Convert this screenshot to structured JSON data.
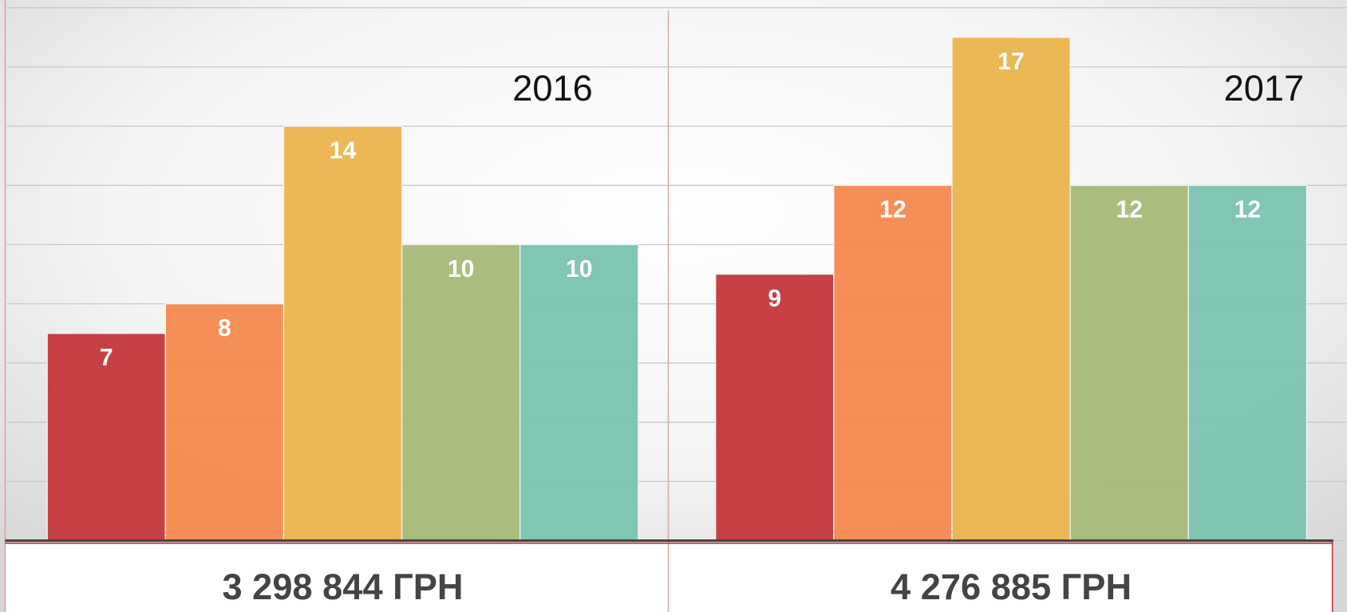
{
  "chart_data": {
    "type": "bar",
    "categories": [
      "2016",
      "2017"
    ],
    "series": [
      {
        "color": "#c4383c",
        "values": [
          7,
          9
        ]
      },
      {
        "color": "#f58a50",
        "values": [
          8,
          12
        ]
      },
      {
        "color": "#ebb54f",
        "values": [
          14,
          17
        ]
      },
      {
        "color": "#a7ba7a",
        "values": [
          10,
          12
        ]
      },
      {
        "color": "#7cc3b0",
        "values": [
          10,
          12
        ]
      }
    ],
    "footer_labels": [
      "3 298 844 ГРН",
      "4 276 885 ГРН"
    ],
    "ylim": [
      0,
      18
    ],
    "yticks": [
      0,
      2,
      4,
      6,
      8,
      10,
      12,
      14,
      16,
      18
    ],
    "grid": true
  }
}
